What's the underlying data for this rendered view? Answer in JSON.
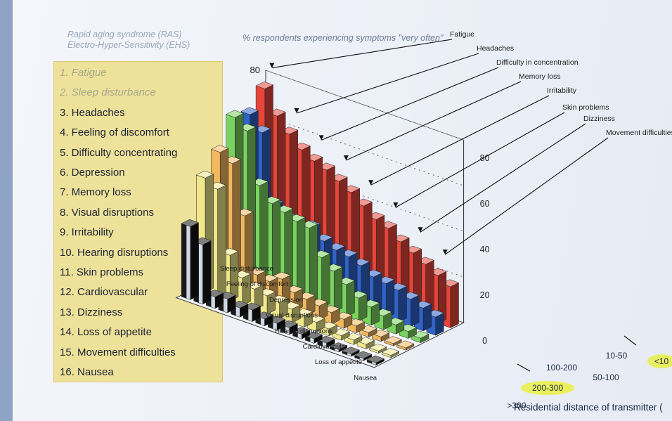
{
  "header": {
    "line1": "Rapid aging syndrome (RAS)",
    "line2": "Electro-Hyper-Sensitivity (EHS)"
  },
  "legend": {
    "items": [
      {
        "label": "1. Fatigue",
        "dim": true
      },
      {
        "label": "2. Sleep disturbance",
        "dim": true
      },
      {
        "label": "3. Headaches",
        "dim": false
      },
      {
        "label": "4. Feeling of discomfort",
        "dim": false
      },
      {
        "label": "5. Difficulty concentrating",
        "dim": false
      },
      {
        "label": "6. Depression",
        "dim": false
      },
      {
        "label": "7. Memory loss",
        "dim": false
      },
      {
        "label": "8. Visual disruptions",
        "dim": false
      },
      {
        "label": "9. Irritability",
        "dim": false
      },
      {
        "label": "10. Hearing disruptions",
        "dim": false
      },
      {
        "label": "11. Skin problems",
        "dim": false
      },
      {
        "label": "12. Cardiovascular",
        "dim": false
      },
      {
        "label": "13. Dizziness",
        "dim": false
      },
      {
        "label": "14. Loss of appetite",
        "dim": false
      },
      {
        "label": "15. Movement difficulties",
        "dim": false
      },
      {
        "label": "16. Nausea",
        "dim": false
      }
    ]
  },
  "chart_data": {
    "type": "bar",
    "title": "% respondents experiencing symptoms \"very often\"",
    "ylabel": "%",
    "xlabel": "Residential distance of transmitter (",
    "ylim": [
      0,
      80
    ],
    "yticks": [
      0,
      20,
      40,
      60,
      80
    ],
    "distances": [
      "<10",
      "10-50",
      "50-100",
      "100-200",
      "200-300",
      ">300"
    ],
    "highlighted_distances": [
      "<10",
      "200-300"
    ],
    "colors": {
      "red": "#e6453a",
      "blue": "#2f63c8",
      "green": "#79d35e",
      "orange": "#f2b85e",
      "yellow": "#f0e88a",
      "black": "#141414"
    },
    "symptoms_back_labels": [
      "Fatigue",
      "Headaches",
      "Difficulty in concentration",
      "Memory loss",
      "Irritability",
      "Skin problems",
      "Dizziness",
      "Movement difficulties"
    ],
    "symptoms_front_labels": [
      "Sleep disturbance",
      "Feeling of discomfort",
      "Depression",
      "Visual disruptions",
      "Hearing disruptions",
      "Cardiovascular",
      "Loss of appetite",
      "Nausea"
    ],
    "series": [
      {
        "distance": "<10",
        "color": "red",
        "values": [
          76,
          66,
          60,
          55,
          52,
          50,
          47,
          44,
          40,
          36,
          34,
          30,
          27,
          24,
          21,
          18
        ]
      },
      {
        "distance": "10-50",
        "color": "blue",
        "values": [
          68,
          62,
          32,
          28,
          26,
          28,
          24,
          22,
          21,
          19,
          16,
          15,
          14,
          12,
          10,
          8
        ]
      },
      {
        "distance": "50-100",
        "color": "green",
        "values": [
          70,
          66,
          44,
          38,
          36,
          34,
          33,
          22,
          18,
          14,
          10,
          8,
          6,
          4,
          3,
          2
        ]
      },
      {
        "distance": "100-200",
        "color": "orange",
        "values": [
          58,
          55,
          34,
          10,
          9,
          12,
          8,
          7,
          6,
          5,
          4,
          3,
          2,
          2,
          1,
          1
        ]
      },
      {
        "distance": "200-300",
        "color": "yellow",
        "values": [
          50,
          47,
          20,
          12,
          9,
          8,
          7,
          6,
          5,
          4,
          3,
          2,
          2,
          2,
          1,
          1
        ]
      },
      {
        "distance": ">300",
        "color": "black",
        "values": [
          32,
          26,
          5,
          6,
          4,
          5,
          3,
          3,
          3,
          2,
          2,
          2,
          1,
          1,
          1,
          1
        ]
      }
    ]
  }
}
